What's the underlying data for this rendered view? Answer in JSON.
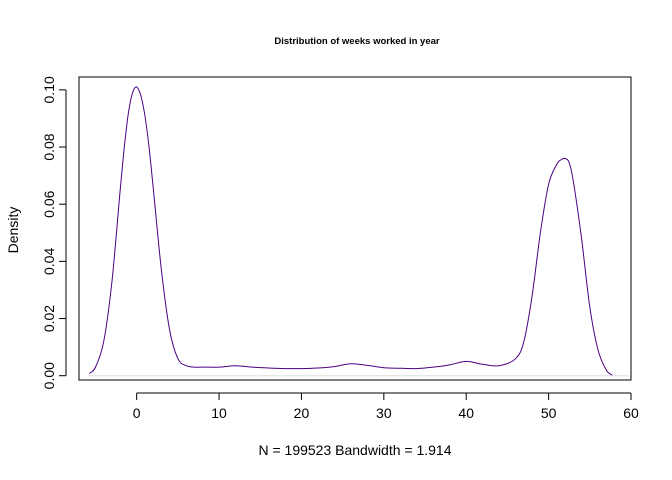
{
  "chart_data": {
    "type": "line",
    "title": "Distribution of weeks worked in year",
    "xlabel": "N = 199523   Bandwidth = 1.914",
    "ylabel": "Density",
    "xlim": [
      -7,
      60
    ],
    "ylim": [
      -0.0015,
      0.1045
    ],
    "x_ticks": [
      0,
      10,
      20,
      30,
      40,
      50,
      60
    ],
    "y_ticks": [
      0.0,
      0.02,
      0.04,
      0.06,
      0.08,
      0.1
    ],
    "x_tick_labels": [
      "0",
      "10",
      "20",
      "30",
      "40",
      "50",
      "60"
    ],
    "y_tick_labels": [
      "0.00",
      "0.02",
      "0.04",
      "0.06",
      "0.08",
      "0.10"
    ],
    "baseline": 0,
    "grid": false,
    "line_color": "#4B0082",
    "baseline_color": "#dddddd",
    "series": [
      {
        "x": [
          -5.74,
          -5,
          -4,
          -3,
          -2,
          -1.5,
          -1,
          -0.5,
          0,
          0.5,
          1,
          1.5,
          2,
          3,
          4,
          5,
          6,
          7,
          8,
          10,
          12,
          14,
          16,
          18,
          20,
          22,
          24,
          26,
          28,
          30,
          32,
          34,
          36,
          38,
          40,
          42,
          44,
          46,
          47,
          48,
          49,
          50,
          51,
          51.5,
          52,
          52.5,
          53,
          54,
          55,
          56,
          57,
          57.74
        ],
        "y": [
          0.0008,
          0.003,
          0.012,
          0.033,
          0.065,
          0.08,
          0.092,
          0.099,
          0.101,
          0.098,
          0.091,
          0.08,
          0.066,
          0.037,
          0.016,
          0.006,
          0.0035,
          0.003,
          0.003,
          0.003,
          0.0035,
          0.003,
          0.0027,
          0.0025,
          0.0025,
          0.0027,
          0.0032,
          0.0042,
          0.0036,
          0.0028,
          0.0026,
          0.0025,
          0.003,
          0.0038,
          0.005,
          0.004,
          0.0035,
          0.006,
          0.012,
          0.028,
          0.05,
          0.067,
          0.074,
          0.0755,
          0.076,
          0.0745,
          0.068,
          0.048,
          0.024,
          0.009,
          0.002,
          0.0002
        ]
      }
    ]
  }
}
